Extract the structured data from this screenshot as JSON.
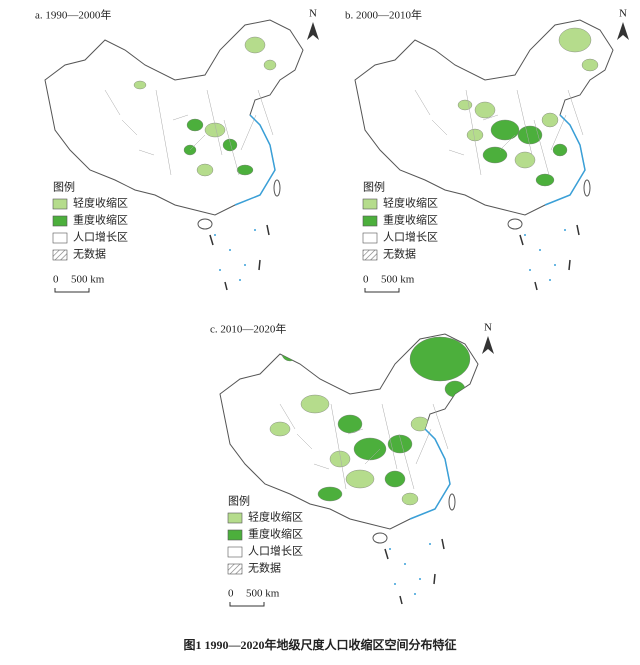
{
  "panels": [
    {
      "title": "a. 1990—2000年",
      "north": "N",
      "legend_title": "图例",
      "legend": [
        {
          "label": "轻度收缩区",
          "color": "#b5dc8c"
        },
        {
          "label": "重度收缩区",
          "color": "#4caf3c"
        },
        {
          "label": "人口增长区",
          "color": "#ffffff"
        },
        {
          "label": "无数据",
          "color": "#777777"
        }
      ],
      "scale": [
        "0",
        "500 km"
      ]
    },
    {
      "title": "b. 2000—2010年",
      "north": "N",
      "legend_title": "图例",
      "legend": [
        {
          "label": "轻度收缩区",
          "color": "#b5dc8c"
        },
        {
          "label": "重度收缩区",
          "color": "#4caf3c"
        },
        {
          "label": "人口增长区",
          "color": "#ffffff"
        },
        {
          "label": "无数据",
          "color": "#777777"
        }
      ],
      "scale": [
        "0",
        "500 km"
      ]
    },
    {
      "title": "c. 2010—2020年",
      "north": "N",
      "legend_title": "图例",
      "legend": [
        {
          "label": "轻度收缩区",
          "color": "#b5dc8c"
        },
        {
          "label": "重度收缩区",
          "color": "#4caf3c"
        },
        {
          "label": "人口增长区",
          "color": "#ffffff"
        },
        {
          "label": "无数据",
          "color": "#777777"
        }
      ],
      "scale": [
        "0",
        "500 km"
      ]
    }
  ],
  "caption": "图1  1990—2020年地级尺度人口收缩区空间分布特征"
}
